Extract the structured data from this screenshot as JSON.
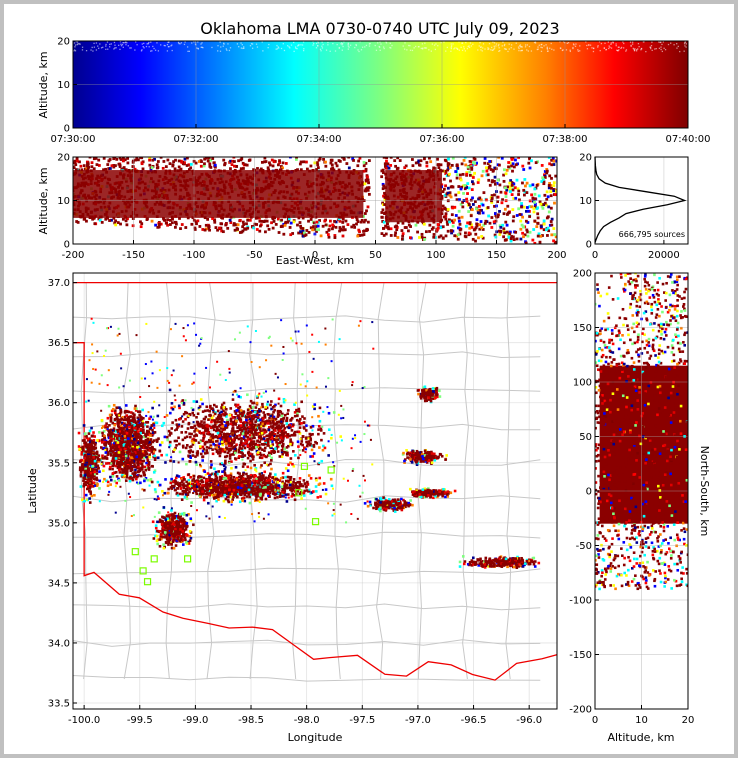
{
  "chart_data": [
    {
      "panel": "time-altitude",
      "type": "scatter",
      "title": "Oklahoma LMA 0730-0740 UTC July 09, 2023",
      "ylabel": "Altitude, km",
      "xlim": [
        "07:30:00",
        "07:40:00"
      ],
      "ylim": [
        0,
        20
      ],
      "x_ticks": [
        "07:30:00",
        "07:32:00",
        "07:34:00",
        "07:36:00",
        "07:38:00",
        "07:40:00"
      ],
      "y_ticks": [
        "0",
        "10",
        "20"
      ],
      "color_by": "time",
      "colormap": [
        "#00008f",
        "#0000ff",
        "#00ffff",
        "#7fff7f",
        "#ffff00",
        "#ff7f00",
        "#ff0000",
        "#7f0000"
      ]
    },
    {
      "panel": "east-west-altitude",
      "type": "scatter",
      "xlabel": "East-West, km",
      "ylabel": "Altitude, km",
      "xlim": [
        -200,
        200
      ],
      "ylim": [
        0,
        20
      ],
      "x_ticks": [
        "-200",
        "-150",
        "-100",
        "-50",
        "0",
        "50",
        "100",
        "150",
        "200"
      ],
      "y_ticks": [
        "0",
        "10",
        "20"
      ]
    },
    {
      "panel": "altitude-histogram",
      "type": "line",
      "annotation": "666,795 sources",
      "xlim": [
        0,
        27000
      ],
      "ylim": [
        0,
        20
      ],
      "x_ticks": [
        "0",
        "20000"
      ],
      "y_ticks": [
        "0",
        "10",
        "20"
      ],
      "profile": [
        {
          "alt": 0.3,
          "count": 0
        },
        {
          "alt": 1,
          "count": 300
        },
        {
          "alt": 2,
          "count": 800
        },
        {
          "alt": 3,
          "count": 1500
        },
        {
          "alt": 4,
          "count": 2500
        },
        {
          "alt": 5,
          "count": 4500
        },
        {
          "alt": 6,
          "count": 7000
        },
        {
          "alt": 7,
          "count": 9000
        },
        {
          "alt": 8,
          "count": 14000
        },
        {
          "alt": 9,
          "count": 21000
        },
        {
          "alt": 10,
          "count": 26000
        },
        {
          "alt": 11,
          "count": 23000
        },
        {
          "alt": 12,
          "count": 15000
        },
        {
          "alt": 13,
          "count": 7000
        },
        {
          "alt": 14,
          "count": 3000
        },
        {
          "alt": 15,
          "count": 1200
        },
        {
          "alt": 16,
          "count": 500
        },
        {
          "alt": 17,
          "count": 250
        },
        {
          "alt": 18,
          "count": 120
        },
        {
          "alt": 19,
          "count": 50
        },
        {
          "alt": 20,
          "count": 0
        }
      ]
    },
    {
      "panel": "plan-view",
      "type": "scatter",
      "xlabel": "Longitude",
      "ylabel": "Latitude",
      "xlim": [
        -100.1,
        -95.75
      ],
      "ylim": [
        33.45,
        37.08
      ],
      "x_ticks": [
        "-100.0",
        "-99.5",
        "-99.0",
        "-98.5",
        "-98.0",
        "-97.5",
        "-97.0",
        "-96.5",
        "-96.0"
      ],
      "y_ticks": [
        "33.5",
        "34.0",
        "34.5",
        "35.0",
        "35.5",
        "36.0",
        "36.5",
        "37.0"
      ],
      "stations": [
        {
          "lon": -97.78,
          "lat": 35.44
        },
        {
          "lon": -98.02,
          "lat": 35.47
        },
        {
          "lon": -97.92,
          "lat": 35.01
        },
        {
          "lon": -99.47,
          "lat": 34.6
        },
        {
          "lon": -99.54,
          "lat": 34.76
        },
        {
          "lon": -99.43,
          "lat": 34.51
        },
        {
          "lon": -99.37,
          "lat": 34.7
        },
        {
          "lon": -99.07,
          "lat": 34.7
        },
        {
          "lon": -98.07,
          "lat": 35.25
        }
      ],
      "storm_regions": [
        {
          "lon": -98.55,
          "lat": 35.75,
          "rlon": 0.95,
          "rlat": 0.38
        },
        {
          "lon": -99.6,
          "lat": 35.65,
          "rlon": 0.35,
          "rlat": 0.4
        },
        {
          "lon": -99.95,
          "lat": 35.5,
          "rlon": 0.12,
          "rlat": 0.35
        },
        {
          "lon": -98.6,
          "lat": 35.3,
          "rlon": 0.9,
          "rlat": 0.15
        },
        {
          "lon": -97.25,
          "lat": 35.15,
          "rlon": 0.25,
          "rlat": 0.07
        },
        {
          "lon": -96.9,
          "lat": 35.25,
          "rlon": 0.25,
          "rlat": 0.05
        },
        {
          "lon": -96.95,
          "lat": 35.55,
          "rlon": 0.25,
          "rlat": 0.07
        },
        {
          "lon": -96.9,
          "lat": 36.07,
          "rlon": 0.12,
          "rlat": 0.08
        },
        {
          "lon": -99.2,
          "lat": 34.95,
          "rlon": 0.2,
          "rlat": 0.2
        },
        {
          "lon": -96.25,
          "lat": 34.67,
          "rlon": 0.45,
          "rlat": 0.06
        }
      ]
    },
    {
      "panel": "altitude-north-south",
      "type": "scatter",
      "xlabel": "Altitude, km",
      "ylabel": "North-South, km",
      "xlim": [
        0,
        20
      ],
      "ylim": [
        -200,
        200
      ],
      "x_ticks": [
        "0",
        "10",
        "20"
      ],
      "y_ticks": [
        "-200",
        "-150",
        "-100",
        "-50",
        "0",
        "50",
        "100",
        "150",
        "200"
      ]
    }
  ]
}
